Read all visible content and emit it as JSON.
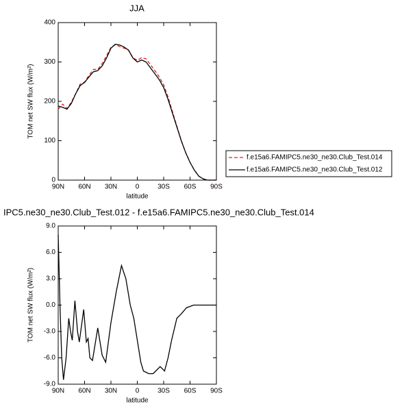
{
  "chart_data": [
    {
      "type": "line",
      "title": "JJA",
      "xlabel": "latitude",
      "ylabel": "TOM net SW flux (W/m²)",
      "xlim": [
        90,
        -90
      ],
      "ylim": [
        0,
        400
      ],
      "xticks": [
        {
          "value": 90,
          "label": "90N"
        },
        {
          "value": 60,
          "label": "60N"
        },
        {
          "value": 30,
          "label": "30N"
        },
        0,
        {
          "value": -30,
          "label": "30S"
        },
        {
          "value": -60,
          "label": "60S"
        },
        {
          "value": -90,
          "label": "90S"
        }
      ],
      "yticks": [
        0,
        100,
        200,
        300,
        400
      ],
      "legend": "outside-right",
      "x": [
        90,
        85,
        80,
        75,
        70,
        65,
        60,
        55,
        50,
        45,
        40,
        35,
        30,
        25,
        20,
        15,
        10,
        5,
        0,
        -5,
        -10,
        -15,
        -20,
        -25,
        -30,
        -35,
        -40,
        -45,
        -50,
        -55,
        -60,
        -65,
        -70,
        -75,
        -80,
        -85,
        -90
      ],
      "series": [
        {
          "name": "f.e15a6.FAMIPC5.ne30_ne30.Club_Test.014",
          "color": "#d62020",
          "dash": true,
          "values": [
            180,
            193,
            182,
            198,
            220,
            244,
            249,
            266,
            281,
            281,
            296,
            316,
            337,
            344,
            339,
            335,
            330,
            311,
            304,
            311,
            308,
            293,
            278,
            262,
            242,
            211,
            174,
            137,
            101,
            70,
            45,
            25,
            10,
            3,
            0,
            0,
            0
          ]
        },
        {
          "name": "f.e15a6.FAMIPC5.ne30_ne30.Club_Test.012",
          "color": "#000000",
          "dash": false,
          "values": [
            188,
            185,
            180,
            195,
            220,
            240,
            248,
            262,
            275,
            278,
            290,
            310,
            335,
            345,
            343,
            338,
            330,
            310,
            300,
            305,
            300,
            285,
            270,
            255,
            235,
            205,
            170,
            135,
            100,
            70,
            45,
            25,
            10,
            3,
            0,
            0,
            0
          ]
        }
      ]
    },
    {
      "type": "line",
      "title": "IPC5.ne30_ne30.Club_Test.012 - f.e15a6.FAMIPC5.ne30_ne30.Club_Test.014",
      "xlabel": "latitude",
      "ylabel": "TOM net SW flux (W/m²)",
      "xlim": [
        90,
        -90
      ],
      "ylim": [
        -9,
        9
      ],
      "xticks": [
        {
          "value": 90,
          "label": "90N"
        },
        {
          "value": 60,
          "label": "60N"
        },
        {
          "value": 30,
          "label": "30N"
        },
        0,
        {
          "value": -30,
          "label": "30S"
        },
        {
          "value": -60,
          "label": "60S"
        },
        {
          "value": -90,
          "label": "90S"
        }
      ],
      "yticks": [
        {
          "value": -9,
          "label": "-9.0"
        },
        {
          "value": -6,
          "label": "-6.0"
        },
        {
          "value": -3,
          "label": "-3.0"
        },
        {
          "value": 0,
          "label": "0.0"
        },
        {
          "value": 3,
          "label": "3.0"
        },
        {
          "value": 6,
          "label": "6.0"
        },
        {
          "value": 9,
          "label": "9.0"
        }
      ],
      "x": [
        90,
        88,
        86,
        84,
        81,
        78,
        76,
        74,
        71,
        68,
        66,
        61,
        58,
        56,
        54,
        51,
        45,
        40,
        36,
        30,
        24,
        18,
        13,
        8,
        4,
        0,
        -4,
        -7,
        -13,
        -18,
        -21,
        -26,
        -31,
        -35,
        -39,
        -45,
        -50,
        -56,
        -64,
        -90
      ],
      "series": [
        {
          "color": "#000000",
          "dash": false,
          "values": [
            8,
            0,
            -6,
            -8.5,
            -6,
            -1.5,
            -3,
            -4,
            0.5,
            -3,
            -4.2,
            -0.5,
            -4.2,
            -3.8,
            -6,
            -6.3,
            -2.6,
            -5.7,
            -6.5,
            -2,
            1.5,
            4.5,
            3,
            0,
            -1.5,
            -4,
            -6.5,
            -7.5,
            -7.8,
            -7.8,
            -7.5,
            -7,
            -7.5,
            -6,
            -4,
            -1.5,
            -1,
            -0.3,
            0,
            0
          ]
        }
      ]
    }
  ]
}
